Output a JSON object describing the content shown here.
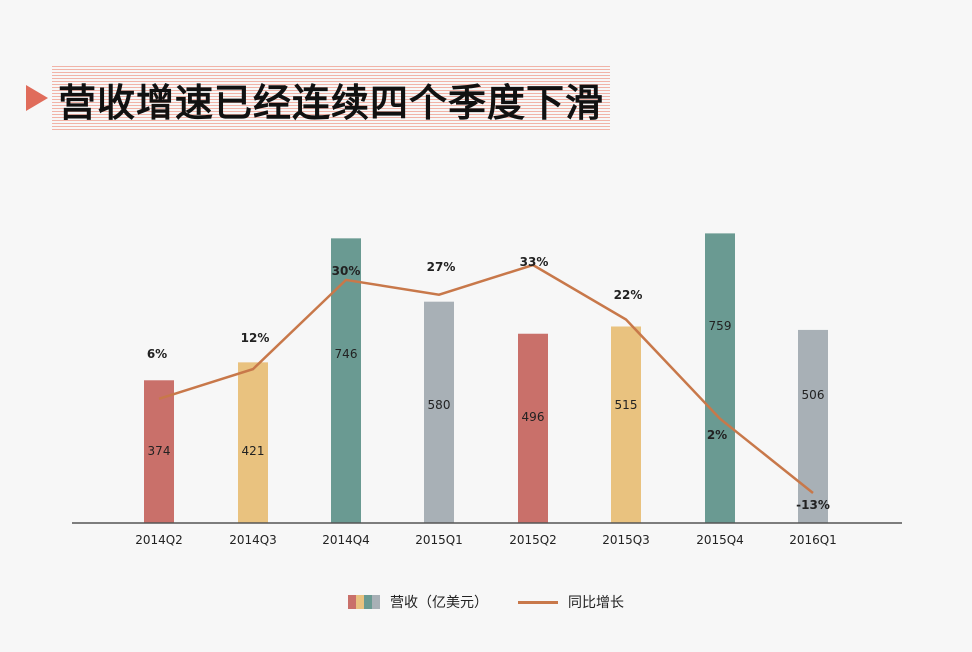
{
  "title": "营收增速已经连续四个季度下滑",
  "colors": {
    "title_accent": "#e06c5b",
    "line": "#c8784a",
    "bar_palette": [
      "#c9706a",
      "#e9c27f",
      "#6a9a92",
      "#a8b0b6"
    ]
  },
  "legend": {
    "bar_label": "营收（亿美元）",
    "line_label": "同比增长"
  },
  "chart_data": {
    "type": "bar",
    "categories": [
      "2014Q2",
      "2014Q3",
      "2014Q4",
      "2015Q1",
      "2015Q2",
      "2015Q3",
      "2015Q4",
      "2016Q1"
    ],
    "series": [
      {
        "name": "营收（亿美元）",
        "type": "bar",
        "values": [
          374,
          421,
          746,
          580,
          496,
          515,
          759,
          506
        ]
      },
      {
        "name": "同比增长",
        "type": "line",
        "values": [
          6,
          12,
          30,
          27,
          33,
          22,
          2,
          -13
        ],
        "labels": [
          "6%",
          "12%",
          "30%",
          "27%",
          "33%",
          "22%",
          "2%",
          "-13%"
        ]
      }
    ],
    "bar_ylim": [
      0,
      760
    ],
    "line_ylim": [
      -20,
      40
    ],
    "grid": false,
    "legend_position": "bottom"
  }
}
